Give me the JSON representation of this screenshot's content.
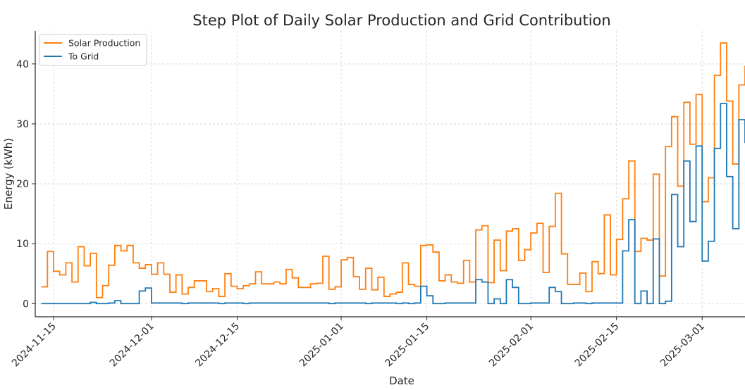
{
  "chart_data": {
    "type": "line",
    "step": true,
    "title": "Step Plot of Daily Solar Production and Grid Contribution",
    "xlabel": "Date",
    "ylabel": "Energy (kWh)",
    "x_start": "2024-11-13",
    "xlim": [
      "2024-11-12",
      "2025-03-08"
    ],
    "ylim": [
      -2.2,
      45.5
    ],
    "yticks": [
      0,
      10,
      20,
      30,
      40
    ],
    "xticks": [
      "2024-11-15",
      "2024-12-01",
      "2024-12-15",
      "2025-01-01",
      "2025-01-15",
      "2025-02-01",
      "2025-02-15",
      "2025-03-01"
    ],
    "grid": true,
    "legend_position": "top-left",
    "series": [
      {
        "name": "Solar Production",
        "color": "#ff7f0e",
        "values": [
          2.8,
          8.7,
          5.4,
          4.8,
          6.8,
          3.6,
          9.5,
          6.3,
          8.4,
          1.0,
          3.0,
          6.4,
          9.7,
          8.8,
          9.7,
          6.8,
          5.9,
          6.5,
          4.9,
          6.8,
          4.9,
          1.9,
          4.8,
          1.6,
          2.7,
          3.8,
          3.8,
          2.0,
          2.5,
          1.2,
          5.0,
          2.9,
          2.5,
          3.0,
          3.3,
          5.3,
          3.3,
          3.3,
          3.6,
          3.3,
          5.7,
          4.3,
          2.7,
          2.7,
          3.3,
          3.4,
          7.9,
          2.4,
          2.8,
          7.3,
          7.7,
          4.5,
          2.4,
          5.9,
          2.3,
          4.4,
          1.2,
          1.6,
          1.9,
          6.8,
          3.2,
          2.9,
          9.7,
          9.8,
          8.6,
          3.8,
          4.8,
          3.6,
          3.4,
          7.2,
          3.6,
          12.3,
          13.0,
          3.5,
          10.6,
          5.5,
          12.1,
          12.5,
          7.2,
          9.0,
          11.8,
          13.4,
          5.2,
          12.9,
          18.4,
          8.3,
          3.2,
          3.2,
          5.1,
          2.0,
          7.0,
          5.0,
          14.8,
          4.8,
          10.7,
          17.5,
          23.8,
          8.7,
          10.9,
          10.6,
          21.6,
          4.6,
          26.2,
          31.2,
          19.6,
          33.6,
          26.6,
          34.9,
          17.0,
          21.0,
          38.1,
          43.5,
          33.8,
          23.3,
          36.5,
          39.6
        ]
      },
      {
        "name": "To Grid",
        "color": "#1f77b4",
        "values": [
          0.0,
          0.0,
          0.0,
          0.0,
          0.0,
          0.0,
          0.0,
          0.0,
          0.2,
          0.0,
          0.0,
          0.1,
          0.5,
          0.0,
          0.0,
          0.0,
          2.1,
          2.6,
          0.1,
          0.1,
          0.1,
          0.1,
          0.1,
          0.0,
          0.1,
          0.1,
          0.1,
          0.1,
          0.1,
          0.0,
          0.1,
          0.1,
          0.1,
          0.0,
          0.1,
          0.1,
          0.1,
          0.1,
          0.1,
          0.1,
          0.1,
          0.1,
          0.1,
          0.1,
          0.1,
          0.1,
          0.1,
          0.0,
          0.1,
          0.1,
          0.1,
          0.1,
          0.1,
          0.0,
          0.1,
          0.1,
          0.1,
          0.1,
          0.0,
          0.1,
          0.0,
          0.1,
          2.9,
          1.3,
          0.0,
          0.0,
          0.1,
          0.1,
          0.1,
          0.1,
          0.1,
          4.0,
          3.6,
          0.0,
          0.8,
          0.0,
          4.0,
          2.7,
          0.0,
          0.0,
          0.1,
          0.1,
          0.1,
          2.7,
          2.0,
          0.0,
          0.0,
          0.1,
          0.1,
          0.0,
          0.1,
          0.1,
          0.1,
          0.1,
          0.1,
          8.8,
          14.0,
          0.0,
          2.1,
          0.0,
          10.8,
          0.0,
          0.4,
          18.2,
          9.5,
          23.8,
          13.7,
          26.3,
          7.1,
          10.4,
          25.9,
          33.4,
          21.2,
          12.5,
          30.7,
          26.9
        ]
      }
    ]
  }
}
